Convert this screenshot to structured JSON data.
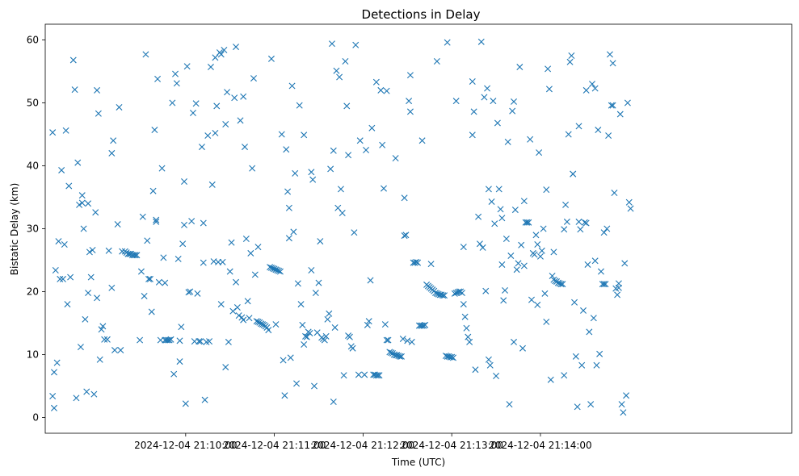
{
  "chart_data": {
    "type": "scatter",
    "title": "Detections in Delay",
    "xlabel": "Time (UTC)",
    "ylabel": "Bistatic Delay (km)",
    "marker": "x",
    "color": "#1f77b4",
    "xlim_seconds": [
      -95,
      410
    ],
    "ylim": [
      -2.5,
      62.5
    ],
    "x_reference": "2024-12-04 21:10:00",
    "xticks": [
      {
        "label": "2024-12-04 21:10:00",
        "t": 0
      },
      {
        "label": "2024-12-04 21:11:00",
        "t": 60
      },
      {
        "label": "2024-12-04 21:12:00",
        "t": 120
      },
      {
        "label": "2024-12-04 21:13:00",
        "t": 180
      },
      {
        "label": "2024-12-04 21:14:00",
        "t": 240
      }
    ],
    "yticks": [
      0,
      10,
      20,
      30,
      40,
      50,
      60
    ],
    "points": [
      [
        -90,
        45.3
      ],
      [
        -90,
        3.4
      ],
      [
        -89,
        1.5
      ],
      [
        -89,
        7.2
      ],
      [
        -88,
        23.4
      ],
      [
        -87,
        8.7
      ],
      [
        -86,
        28.0
      ],
      [
        -85,
        22.0
      ],
      [
        -84,
        39.3
      ],
      [
        -83,
        22.0
      ],
      [
        -82,
        27.5
      ],
      [
        -81,
        45.6
      ],
      [
        -80,
        18.0
      ],
      [
        -79,
        36.8
      ],
      [
        -78,
        22.3
      ],
      [
        -76,
        56.8
      ],
      [
        -75,
        52.1
      ],
      [
        -74,
        3.1
      ],
      [
        -73,
        40.5
      ],
      [
        -72,
        33.8
      ],
      [
        -71,
        11.2
      ],
      [
        -70,
        35.3
      ],
      [
        -69,
        30.0
      ],
      [
        -68,
        15.6
      ],
      [
        -67,
        4.1
      ],
      [
        -66,
        19.8
      ],
      [
        -65,
        26.3
      ],
      [
        -64,
        22.3
      ],
      [
        -62,
        3.7
      ],
      [
        -61,
        32.6
      ],
      [
        -60,
        52.0
      ],
      [
        -59,
        48.3
      ],
      [
        -58,
        9.2
      ],
      [
        -56,
        14.5
      ],
      [
        -55,
        12.4
      ],
      [
        -53,
        12.4
      ],
      [
        -52,
        26.5
      ],
      [
        -50,
        42.0
      ],
      [
        -49,
        44.0
      ],
      [
        -48,
        10.7
      ],
      [
        -46,
        30.7
      ],
      [
        -45,
        49.3
      ],
      [
        -44,
        10.7
      ],
      [
        -43,
        26.4
      ],
      [
        -41,
        26.4
      ],
      [
        -40,
        26.2
      ],
      [
        -39,
        26.0
      ],
      [
        -38,
        26.0
      ],
      [
        -37,
        26.0
      ],
      [
        -36,
        25.8
      ],
      [
        -35,
        25.8
      ],
      [
        -34,
        25.8
      ],
      [
        -33,
        25.8
      ],
      [
        -31,
        12.3
      ],
      [
        -30,
        23.2
      ],
      [
        -29,
        31.9
      ],
      [
        -28,
        19.3
      ],
      [
        -27,
        57.7
      ],
      [
        -26,
        28.1
      ],
      [
        -25,
        22.0
      ],
      [
        -24,
        22.0
      ],
      [
        -23,
        16.8
      ],
      [
        -22,
        36.0
      ],
      [
        -21,
        45.7
      ],
      [
        -20,
        31.4
      ],
      [
        -19,
        53.8
      ],
      [
        -18,
        21.5
      ],
      [
        -17,
        12.3
      ],
      [
        -16,
        39.6
      ],
      [
        -15,
        25.4
      ],
      [
        -14,
        12.3
      ],
      [
        -13,
        12.3
      ],
      [
        -12,
        12.3
      ],
      [
        -11,
        12.3
      ],
      [
        -10,
        12.4
      ],
      [
        -9,
        50.0
      ],
      [
        -8,
        6.9
      ],
      [
        -7,
        54.6
      ],
      [
        -6,
        53.1
      ],
      [
        -5,
        25.2
      ],
      [
        -4,
        8.9
      ],
      [
        -3,
        14.4
      ],
      [
        -2,
        27.6
      ],
      [
        -1,
        30.6
      ],
      [
        0,
        2.2
      ],
      [
        1,
        55.8
      ],
      [
        2,
        19.9
      ],
      [
        3,
        20.0
      ],
      [
        4,
        31.2
      ],
      [
        5,
        48.4
      ],
      [
        6,
        12.1
      ],
      [
        7,
        49.9
      ],
      [
        8,
        19.7
      ],
      [
        9,
        12.1
      ],
      [
        10,
        12.1
      ],
      [
        11,
        43.0
      ],
      [
        12,
        30.9
      ],
      [
        13,
        2.8
      ],
      [
        14,
        12.0
      ],
      [
        15,
        44.8
      ],
      [
        16,
        12.1
      ],
      [
        17,
        55.7
      ],
      [
        18,
        37.0
      ],
      [
        19,
        24.8
      ],
      [
        20,
        57.2
      ],
      [
        21,
        49.5
      ],
      [
        22,
        24.7
      ],
      [
        23,
        58.0
      ],
      [
        24,
        18.0
      ],
      [
        25,
        24.7
      ],
      [
        26,
        58.4
      ],
      [
        27,
        8.0
      ],
      [
        28,
        51.7
      ],
      [
        29,
        12.0
      ],
      [
        30,
        23.2
      ],
      [
        31,
        27.8
      ],
      [
        32,
        16.9
      ],
      [
        33,
        50.8
      ],
      [
        34,
        21.5
      ],
      [
        35,
        17.5
      ],
      [
        36,
        16.2
      ],
      [
        37,
        47.2
      ],
      [
        38,
        15.9
      ],
      [
        39,
        15.5
      ],
      [
        40,
        43.0
      ],
      [
        41,
        28.4
      ],
      [
        42,
        18.5
      ],
      [
        43,
        15.8
      ],
      [
        44,
        26.1
      ],
      [
        45,
        39.6
      ],
      [
        46,
        53.9
      ],
      [
        47,
        22.7
      ],
      [
        48,
        15.3
      ],
      [
        49,
        15.2
      ],
      [
        50,
        15.1
      ],
      [
        51,
        14.9
      ],
      [
        52,
        14.8
      ],
      [
        53,
        14.7
      ],
      [
        54,
        14.5
      ],
      [
        55,
        14.3
      ],
      [
        56,
        13.9
      ],
      [
        57,
        23.9
      ],
      [
        58,
        23.8
      ],
      [
        59,
        23.7
      ],
      [
        60,
        23.6
      ],
      [
        61,
        23.5
      ],
      [
        62,
        23.4
      ],
      [
        63,
        23.3
      ],
      [
        64,
        23.2
      ],
      [
        65,
        45.0
      ],
      [
        66,
        9.1
      ],
      [
        67,
        3.5
      ],
      [
        68,
        42.6
      ],
      [
        69,
        35.9
      ],
      [
        70,
        28.5
      ],
      [
        71,
        9.5
      ],
      [
        72,
        52.7
      ],
      [
        73,
        29.5
      ],
      [
        74,
        38.8
      ],
      [
        75,
        5.4
      ],
      [
        76,
        21.3
      ],
      [
        77,
        49.6
      ],
      [
        78,
        18.0
      ],
      [
        79,
        14.7
      ],
      [
        80,
        11.6
      ],
      [
        81,
        12.9
      ],
      [
        82,
        12.8
      ],
      [
        83,
        13.6
      ],
      [
        84,
        13.4
      ],
      [
        85,
        39.0
      ],
      [
        86,
        37.8
      ],
      [
        87,
        5.0
      ],
      [
        88,
        19.8
      ],
      [
        89,
        13.5
      ],
      [
        90,
        21.4
      ],
      [
        91,
        28.0
      ],
      [
        92,
        12.7
      ],
      [
        93,
        12.5
      ],
      [
        94,
        12.3
      ],
      [
        95,
        12.9
      ],
      [
        96,
        15.6
      ],
      [
        97,
        16.5
      ],
      [
        98,
        39.5
      ],
      [
        99,
        59.4
      ],
      [
        100,
        2.5
      ],
      [
        101,
        14.3
      ],
      [
        102,
        55.1
      ],
      [
        103,
        33.3
      ],
      [
        104,
        54.1
      ],
      [
        105,
        36.3
      ],
      [
        106,
        32.5
      ],
      [
        107,
        6.7
      ],
      [
        108,
        56.6
      ],
      [
        109,
        49.5
      ],
      [
        110,
        13.0
      ],
      [
        111,
        12.8
      ],
      [
        112,
        11.3
      ],
      [
        113,
        11.0
      ],
      [
        114,
        29.4
      ],
      [
        115,
        59.2
      ],
      [
        117,
        6.8
      ],
      [
        118,
        44.0
      ],
      [
        121,
        6.8
      ],
      [
        122,
        42.5
      ],
      [
        123,
        14.7
      ],
      [
        124,
        15.3
      ],
      [
        125,
        21.8
      ],
      [
        126,
        46.0
      ],
      [
        127,
        6.8
      ],
      [
        128,
        6.8
      ],
      [
        129,
        6.7
      ],
      [
        130,
        6.7
      ],
      [
        131,
        6.7
      ],
      [
        132,
        52.0
      ],
      [
        133,
        43.3
      ],
      [
        134,
        36.4
      ],
      [
        135,
        14.8
      ],
      [
        136,
        12.3
      ],
      [
        137,
        12.3
      ],
      [
        138,
        10.4
      ],
      [
        139,
        10.3
      ],
      [
        140,
        10.2
      ],
      [
        141,
        10.0
      ],
      [
        142,
        9.9
      ],
      [
        143,
        9.9
      ],
      [
        144,
        9.8
      ],
      [
        145,
        9.7
      ],
      [
        146,
        9.7
      ],
      [
        147,
        12.5
      ],
      [
        148,
        28.9
      ],
      [
        149,
        29.0
      ],
      [
        150,
        12.2
      ],
      [
        151,
        50.3
      ],
      [
        152,
        48.6
      ],
      [
        153,
        12.0
      ],
      [
        154,
        24.6
      ],
      [
        155,
        24.6
      ],
      [
        156,
        24.7
      ],
      [
        157,
        24.6
      ],
      [
        158,
        14.6
      ],
      [
        159,
        14.6
      ],
      [
        160,
        14.6
      ],
      [
        161,
        14.6
      ],
      [
        162,
        14.7
      ],
      [
        163,
        21.1
      ],
      [
        164,
        20.9
      ],
      [
        165,
        20.7
      ],
      [
        166,
        20.5
      ],
      [
        167,
        20.3
      ],
      [
        168,
        20.1
      ],
      [
        169,
        19.8
      ],
      [
        170,
        19.7
      ],
      [
        171,
        19.6
      ],
      [
        172,
        19.5
      ],
      [
        173,
        19.5
      ],
      [
        174,
        19.4
      ],
      [
        175,
        19.4
      ],
      [
        176,
        9.8
      ],
      [
        177,
        9.7
      ],
      [
        178,
        9.7
      ],
      [
        179,
        9.6
      ],
      [
        180,
        9.6
      ],
      [
        181,
        9.5
      ],
      [
        182,
        19.7
      ],
      [
        183,
        19.8
      ],
      [
        184,
        19.9
      ],
      [
        185,
        20.0
      ],
      [
        186,
        20.0
      ],
      [
        187,
        19.8
      ],
      [
        188,
        18.0
      ],
      [
        189,
        16.0
      ],
      [
        190,
        14.2
      ],
      [
        191,
        12.8
      ],
      [
        192,
        12.0
      ],
      [
        194,
        53.4
      ],
      [
        195,
        48.6
      ],
      [
        196,
        7.6
      ],
      [
        198,
        31.9
      ],
      [
        199,
        27.6
      ],
      [
        200,
        59.7
      ],
      [
        201,
        27.0
      ],
      [
        202,
        50.9
      ],
      [
        203,
        20.1
      ],
      [
        204,
        52.3
      ],
      [
        205,
        9.2
      ],
      [
        206,
        8.3
      ],
      [
        207,
        34.3
      ],
      [
        208,
        50.3
      ],
      [
        209,
        30.8
      ],
      [
        210,
        6.6
      ],
      [
        211,
        46.8
      ],
      [
        212,
        36.3
      ],
      [
        213,
        33.1
      ],
      [
        214,
        24.3
      ],
      [
        215,
        18.6
      ],
      [
        216,
        20.2
      ],
      [
        217,
        28.4
      ],
      [
        218,
        43.8
      ],
      [
        219,
        2.1
      ],
      [
        220,
        25.7
      ],
      [
        221,
        48.7
      ],
      [
        222,
        50.2
      ],
      [
        223,
        33.0
      ],
      [
        224,
        23.5
      ],
      [
        225,
        24.5
      ],
      [
        226,
        55.7
      ],
      [
        227,
        27.4
      ],
      [
        228,
        11.0
      ],
      [
        229,
        24.1
      ],
      [
        230,
        31.0
      ],
      [
        231,
        31.0
      ],
      [
        232,
        31.0
      ],
      [
        233,
        44.2
      ],
      [
        234,
        18.7
      ],
      [
        235,
        26.1
      ],
      [
        236,
        25.9
      ],
      [
        237,
        29.0
      ],
      [
        238,
        27.5
      ],
      [
        239,
        42.1
      ],
      [
        240,
        25.6
      ],
      [
        241,
        26.5
      ],
      [
        242,
        30.0
      ],
      [
        243,
        19.7
      ],
      [
        244,
        15.2
      ],
      [
        245,
        55.4
      ],
      [
        246,
        52.2
      ],
      [
        247,
        6.0
      ],
      [
        248,
        22.5
      ],
      [
        249,
        21.9
      ],
      [
        250,
        21.7
      ],
      [
        251,
        21.6
      ],
      [
        252,
        21.4
      ],
      [
        253,
        21.3
      ],
      [
        254,
        21.2
      ],
      [
        255,
        21.2
      ],
      [
        256,
        6.7
      ],
      [
        257,
        33.8
      ],
      [
        258,
        31.1
      ],
      [
        259,
        45.0
      ],
      [
        260,
        56.5
      ],
      [
        261,
        57.5
      ],
      [
        262,
        38.7
      ],
      [
        263,
        18.3
      ],
      [
        264,
        9.7
      ],
      [
        265,
        1.7
      ],
      [
        266,
        31.1
      ],
      [
        267,
        29.9
      ],
      [
        268,
        8.3
      ],
      [
        269,
        17.0
      ],
      [
        270,
        31.0
      ],
      [
        271,
        30.9
      ],
      [
        272,
        24.3
      ],
      [
        273,
        13.6
      ],
      [
        274,
        2.1
      ],
      [
        275,
        53.0
      ],
      [
        276,
        15.8
      ],
      [
        277,
        52.3
      ],
      [
        278,
        8.3
      ],
      [
        279,
        45.7
      ],
      [
        280,
        10.1
      ],
      [
        281,
        23.2
      ],
      [
        282,
        21.2
      ],
      [
        283,
        21.2
      ],
      [
        284,
        21.2
      ],
      [
        285,
        30.0
      ],
      [
        286,
        44.8
      ],
      [
        287,
        57.7
      ],
      [
        288,
        49.6
      ],
      [
        289,
        56.3
      ],
      [
        290,
        35.7
      ],
      [
        291,
        20.5
      ],
      [
        292,
        19.5
      ],
      [
        293,
        21.3
      ],
      [
        294,
        48.2
      ],
      [
        295,
        2.1
      ],
      [
        296,
        0.8
      ],
      [
        297,
        24.5
      ],
      [
        298,
        3.5
      ],
      [
        299,
        50.0
      ],
      [
        300,
        34.2
      ],
      [
        301,
        33.2
      ],
      [
        -70,
        34.1
      ],
      [
        -66,
        34.0
      ],
      [
        -63,
        26.6
      ],
      [
        -60,
        19.0
      ],
      [
        -57,
        14.0
      ],
      [
        -50,
        20.6
      ],
      [
        -20,
        31.1
      ],
      [
        -14,
        21.4
      ],
      [
        -4,
        12.2
      ],
      [
        -1,
        37.5
      ],
      [
        12,
        24.6
      ],
      [
        24,
        57.7
      ],
      [
        20,
        45.2
      ],
      [
        27,
        46.6
      ],
      [
        34,
        58.9
      ],
      [
        39,
        51.0
      ],
      [
        49,
        27.1
      ],
      [
        58,
        57.0
      ],
      [
        61,
        14.8
      ],
      [
        70,
        33.3
      ],
      [
        80,
        44.9
      ],
      [
        85,
        23.4
      ],
      [
        100,
        42.4
      ],
      [
        110,
        41.7
      ],
      [
        129,
        53.3
      ],
      [
        136,
        51.9
      ],
      [
        142,
        41.2
      ],
      [
        148,
        34.9
      ],
      [
        152,
        54.4
      ],
      [
        160,
        44.0
      ],
      [
        166,
        24.4
      ],
      [
        170,
        56.6
      ],
      [
        177,
        59.6
      ],
      [
        183,
        50.3
      ],
      [
        188,
        27.1
      ],
      [
        194,
        44.9
      ],
      [
        205,
        36.3
      ],
      [
        214,
        31.7
      ],
      [
        222,
        12.0
      ],
      [
        229,
        34.4
      ],
      [
        238,
        17.9
      ],
      [
        244,
        36.2
      ],
      [
        249,
        26.3
      ],
      [
        256,
        29.9
      ],
      [
        262,
        38.7
      ],
      [
        266,
        46.3
      ],
      [
        271,
        52.0
      ],
      [
        277,
        24.9
      ],
      [
        283,
        29.4
      ],
      [
        289,
        49.6
      ],
      [
        293,
        20.6
      ]
    ]
  }
}
